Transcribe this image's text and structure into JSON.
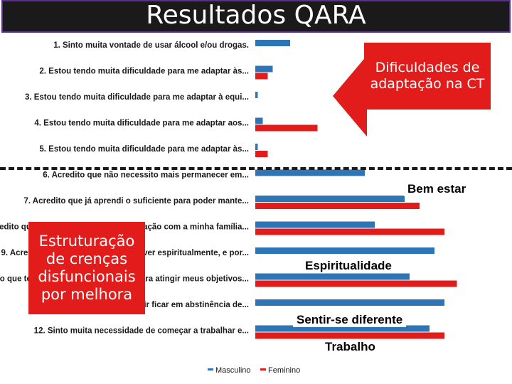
{
  "title": "Resultados QARA",
  "chart_data": {
    "type": "bar",
    "orientation": "horizontal",
    "categories": [
      "1.     Sinto muita vontade de usar álcool e/ou drogas.",
      "2.     Estou tendo muita dificuldade para me adaptar às...",
      "3.     Estou tendo muita dificuldade para me adaptar à equi...",
      "4.     Estou tendo muita dificuldade para me adaptar aos...",
      "5.     Estou tendo muita dificuldade para me adaptar às...",
      "6.     Acredito que não necessito mais permanecer em...",
      "7.     Acredito que já aprendi o suficiente para poder mante...",
      "8.     Acredito que preciso melhorar minha relação com a minha família...",
      "9.     Acredito que preciso me desenvolver espiritualmente, e por...",
      "10.  Acredito que tenho capacidade suficiente para atingir meus objetivos...",
      "11.  Acredito que vou conseguir ficar em abstinência de...",
      "12.  Sinto muita necessidade de começar a trabalhar e..."
    ],
    "series": [
      {
        "name": "Masculino",
        "color": "#2e75b6",
        "values": [
          14,
          7,
          1,
          3,
          1,
          44,
          60,
          48,
          72,
          62,
          76,
          70
        ]
      },
      {
        "name": "Feminino",
        "color": "#e21b1b",
        "values": [
          0,
          5,
          0,
          25,
          5,
          0,
          66,
          76,
          0,
          81,
          0,
          76
        ]
      }
    ],
    "grid": false,
    "legend_position": "bottom"
  },
  "callouts": {
    "adaptacao": "Dificuldades de adaptação na CT",
    "crencas": "Estruturação de crenças disfuncionais por melhora",
    "bem_estar": "Bem estar",
    "espiritualidade": "Espiritualidade",
    "sentir_diferente": "Sentir-se diferente",
    "trabalho": "Trabalho"
  }
}
